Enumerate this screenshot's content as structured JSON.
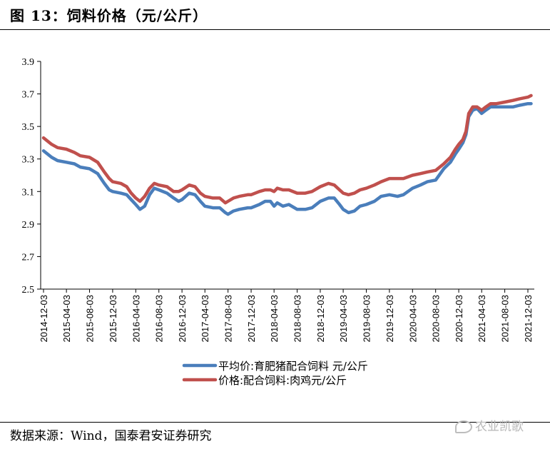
{
  "figure": {
    "title": "图 13：饲料价格（元/公斤）",
    "source": "数据来源：Wind，国泰君安证券研究",
    "watermark": "农业凯歌"
  },
  "chart_data": {
    "type": "line",
    "title": "",
    "xlabel": "",
    "ylabel": "",
    "ylim": [
      2.5,
      3.9
    ],
    "yticks": [
      "2.5",
      "2.7",
      "2.9",
      "3.1",
      "3.3",
      "3.5",
      "3.7",
      "3.9"
    ],
    "xticks": [
      "2014-12-03",
      "2015-04-03",
      "2015-08-03",
      "2015-12-03",
      "2016-04-03",
      "2016-08-03",
      "2016-12-03",
      "2017-04-03",
      "2017-08-03",
      "2017-12-03",
      "2018-04-03",
      "2018-08-03",
      "2018-12-03",
      "2019-04-03",
      "2019-08-03",
      "2019-12-03",
      "2020-04-03",
      "2020-08-03",
      "2020-12-03",
      "2021-04-03",
      "2021-08-03",
      "2021-12-03"
    ],
    "grid": false,
    "legend_position": "bottom-center",
    "series": [
      {
        "name": "平均价:育肥猪配合饲料 元/公斤",
        "color": "#4a7ebb",
        "points": [
          [
            "2014-12-03",
            3.35
          ],
          [
            "2015-01-15",
            3.31
          ],
          [
            "2015-02-15",
            3.29
          ],
          [
            "2015-04-03",
            3.28
          ],
          [
            "2015-05-15",
            3.27
          ],
          [
            "2015-06-15",
            3.25
          ],
          [
            "2015-08-03",
            3.24
          ],
          [
            "2015-09-15",
            3.21
          ],
          [
            "2015-10-20",
            3.15
          ],
          [
            "2015-11-15",
            3.11
          ],
          [
            "2015-12-03",
            3.1
          ],
          [
            "2016-01-15",
            3.09
          ],
          [
            "2016-02-15",
            3.08
          ],
          [
            "2016-03-10",
            3.05
          ],
          [
            "2016-04-03",
            3.02
          ],
          [
            "2016-04-25",
            2.99
          ],
          [
            "2016-05-20",
            3.01
          ],
          [
            "2016-06-15",
            3.08
          ],
          [
            "2016-07-10",
            3.12
          ],
          [
            "2016-08-03",
            3.11
          ],
          [
            "2016-09-15",
            3.09
          ],
          [
            "2016-10-20",
            3.06
          ],
          [
            "2016-11-15",
            3.04
          ],
          [
            "2016-12-03",
            3.05
          ],
          [
            "2017-01-10",
            3.09
          ],
          [
            "2017-02-10",
            3.08
          ],
          [
            "2017-03-10",
            3.04
          ],
          [
            "2017-04-03",
            3.01
          ],
          [
            "2017-05-15",
            3.0
          ],
          [
            "2017-06-20",
            3.0
          ],
          [
            "2017-07-20",
            2.97
          ],
          [
            "2017-08-03",
            2.96
          ],
          [
            "2017-09-01",
            2.98
          ],
          [
            "2017-10-01",
            2.99
          ],
          [
            "2017-11-15",
            3.0
          ],
          [
            "2017-12-03",
            3.0
          ],
          [
            "2018-01-15",
            3.02
          ],
          [
            "2018-02-15",
            3.04
          ],
          [
            "2018-03-15",
            3.04
          ],
          [
            "2018-04-03",
            3.01
          ],
          [
            "2018-04-20",
            3.03
          ],
          [
            "2018-05-20",
            3.01
          ],
          [
            "2018-06-20",
            3.02
          ],
          [
            "2018-08-03",
            2.99
          ],
          [
            "2018-09-15",
            2.99
          ],
          [
            "2018-10-20",
            3.0
          ],
          [
            "2018-12-03",
            3.04
          ],
          [
            "2019-01-15",
            3.06
          ],
          [
            "2019-02-15",
            3.06
          ],
          [
            "2019-03-15",
            3.02
          ],
          [
            "2019-04-03",
            2.99
          ],
          [
            "2019-05-01",
            2.97
          ],
          [
            "2019-06-01",
            2.98
          ],
          [
            "2019-07-01",
            3.01
          ],
          [
            "2019-08-03",
            3.02
          ],
          [
            "2019-09-15",
            3.04
          ],
          [
            "2019-10-20",
            3.07
          ],
          [
            "2019-12-03",
            3.08
          ],
          [
            "2020-01-15",
            3.07
          ],
          [
            "2020-02-15",
            3.08
          ],
          [
            "2020-04-03",
            3.12
          ],
          [
            "2020-05-15",
            3.14
          ],
          [
            "2020-06-20",
            3.16
          ],
          [
            "2020-08-03",
            3.17
          ],
          [
            "2020-09-15",
            3.24
          ],
          [
            "2020-10-20",
            3.28
          ],
          [
            "2020-11-15",
            3.33
          ],
          [
            "2020-12-03",
            3.36
          ],
          [
            "2020-12-25",
            3.4
          ],
          [
            "2021-01-10",
            3.45
          ],
          [
            "2021-01-25",
            3.56
          ],
          [
            "2021-02-15",
            3.6
          ],
          [
            "2021-03-10",
            3.61
          ],
          [
            "2021-04-03",
            3.58
          ],
          [
            "2021-04-25",
            3.6
          ],
          [
            "2021-05-20",
            3.62
          ],
          [
            "2021-06-20",
            3.62
          ],
          [
            "2021-08-03",
            3.62
          ],
          [
            "2021-09-15",
            3.62
          ],
          [
            "2021-10-20",
            3.63
          ],
          [
            "2021-12-03",
            3.64
          ],
          [
            "2021-12-20",
            3.64
          ]
        ]
      },
      {
        "name": "价格:配合饲料:肉鸡元/公斤",
        "color": "#c0504d",
        "points": [
          [
            "2014-12-03",
            3.43
          ],
          [
            "2015-01-15",
            3.39
          ],
          [
            "2015-02-15",
            3.37
          ],
          [
            "2015-04-03",
            3.36
          ],
          [
            "2015-05-15",
            3.34
          ],
          [
            "2015-06-15",
            3.32
          ],
          [
            "2015-08-03",
            3.31
          ],
          [
            "2015-09-15",
            3.28
          ],
          [
            "2015-10-20",
            3.22
          ],
          [
            "2015-11-15",
            3.18
          ],
          [
            "2015-12-03",
            3.16
          ],
          [
            "2016-01-15",
            3.15
          ],
          [
            "2016-02-15",
            3.13
          ],
          [
            "2016-03-10",
            3.09
          ],
          [
            "2016-04-03",
            3.06
          ],
          [
            "2016-04-25",
            3.04
          ],
          [
            "2016-05-20",
            3.07
          ],
          [
            "2016-06-15",
            3.12
          ],
          [
            "2016-07-10",
            3.15
          ],
          [
            "2016-08-03",
            3.14
          ],
          [
            "2016-09-15",
            3.13
          ],
          [
            "2016-10-20",
            3.1
          ],
          [
            "2016-11-15",
            3.1
          ],
          [
            "2016-12-03",
            3.11
          ],
          [
            "2017-01-10",
            3.14
          ],
          [
            "2017-02-10",
            3.13
          ],
          [
            "2017-03-10",
            3.09
          ],
          [
            "2017-04-03",
            3.07
          ],
          [
            "2017-05-15",
            3.06
          ],
          [
            "2017-06-20",
            3.06
          ],
          [
            "2017-07-20",
            3.03
          ],
          [
            "2017-08-03",
            3.04
          ],
          [
            "2017-09-01",
            3.06
          ],
          [
            "2017-10-01",
            3.07
          ],
          [
            "2017-11-15",
            3.08
          ],
          [
            "2017-12-03",
            3.08
          ],
          [
            "2018-01-15",
            3.1
          ],
          [
            "2018-02-15",
            3.11
          ],
          [
            "2018-03-15",
            3.11
          ],
          [
            "2018-04-03",
            3.1
          ],
          [
            "2018-04-20",
            3.12
          ],
          [
            "2018-05-20",
            3.11
          ],
          [
            "2018-06-20",
            3.11
          ],
          [
            "2018-08-03",
            3.09
          ],
          [
            "2018-09-15",
            3.09
          ],
          [
            "2018-10-20",
            3.1
          ],
          [
            "2018-12-03",
            3.13
          ],
          [
            "2019-01-15",
            3.15
          ],
          [
            "2019-02-15",
            3.14
          ],
          [
            "2019-03-15",
            3.11
          ],
          [
            "2019-04-03",
            3.09
          ],
          [
            "2019-05-01",
            3.08
          ],
          [
            "2019-06-01",
            3.09
          ],
          [
            "2019-07-01",
            3.11
          ],
          [
            "2019-08-03",
            3.12
          ],
          [
            "2019-09-15",
            3.14
          ],
          [
            "2019-10-20",
            3.16
          ],
          [
            "2019-12-03",
            3.18
          ],
          [
            "2020-01-15",
            3.18
          ],
          [
            "2020-02-15",
            3.18
          ],
          [
            "2020-04-03",
            3.2
          ],
          [
            "2020-05-15",
            3.21
          ],
          [
            "2020-06-20",
            3.22
          ],
          [
            "2020-08-03",
            3.23
          ],
          [
            "2020-09-15",
            3.27
          ],
          [
            "2020-10-20",
            3.31
          ],
          [
            "2020-11-15",
            3.36
          ],
          [
            "2020-12-03",
            3.39
          ],
          [
            "2020-12-25",
            3.42
          ],
          [
            "2021-01-10",
            3.47
          ],
          [
            "2021-01-25",
            3.58
          ],
          [
            "2021-02-15",
            3.62
          ],
          [
            "2021-03-10",
            3.62
          ],
          [
            "2021-04-03",
            3.6
          ],
          [
            "2021-04-25",
            3.62
          ],
          [
            "2021-05-20",
            3.64
          ],
          [
            "2021-06-20",
            3.64
          ],
          [
            "2021-08-03",
            3.65
          ],
          [
            "2021-09-15",
            3.66
          ],
          [
            "2021-10-20",
            3.67
          ],
          [
            "2021-12-03",
            3.68
          ],
          [
            "2021-12-20",
            3.69
          ]
        ]
      }
    ]
  }
}
